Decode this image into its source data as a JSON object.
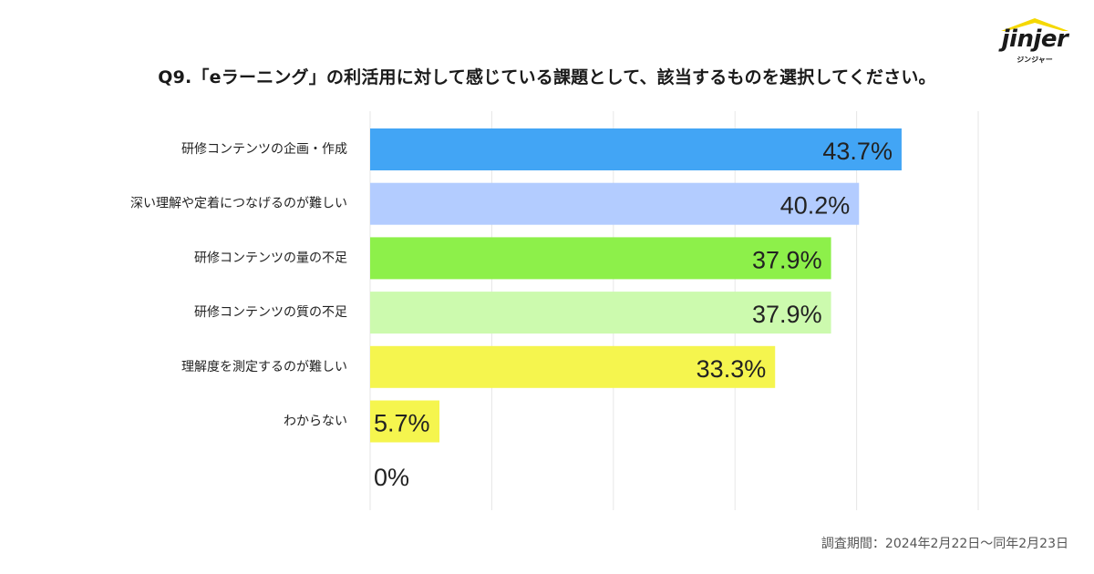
{
  "logo": {
    "text": "jinjer",
    "subtext": "ジンジャー",
    "roof_color": "#F5D800"
  },
  "footnote": "調査期間：2024年2月22日～同年2月23日",
  "chart_data": {
    "type": "bar",
    "orientation": "horizontal",
    "title": "Q9.「eラーニング」の利活用に対して感じている課題として、該当するものを選択してください。",
    "categories": [
      "研修コンテンツの企画・作成",
      "深い理解や定着につなげるのが難しい",
      "研修コンテンツの量の不足",
      "研修コンテンツの質の不足",
      "理解度を測定するのが難しい",
      "わからない",
      ""
    ],
    "values": [
      43.7,
      40.2,
      37.9,
      37.9,
      33.3,
      5.7,
      0
    ],
    "value_labels": [
      "43.7%",
      "40.2%",
      "37.9%",
      "37.9%",
      "33.3%",
      "5.7%",
      "0%"
    ],
    "colors": [
      "#42A5F5",
      "#B3CCFF",
      "#8DF04A",
      "#CCFAAE",
      "#F5F54E",
      "#F5F54E",
      "#F5F54E"
    ],
    "xlim": [
      0,
      50
    ],
    "grid": true,
    "gridline_values": [
      0,
      10,
      20,
      30,
      40,
      50
    ]
  }
}
